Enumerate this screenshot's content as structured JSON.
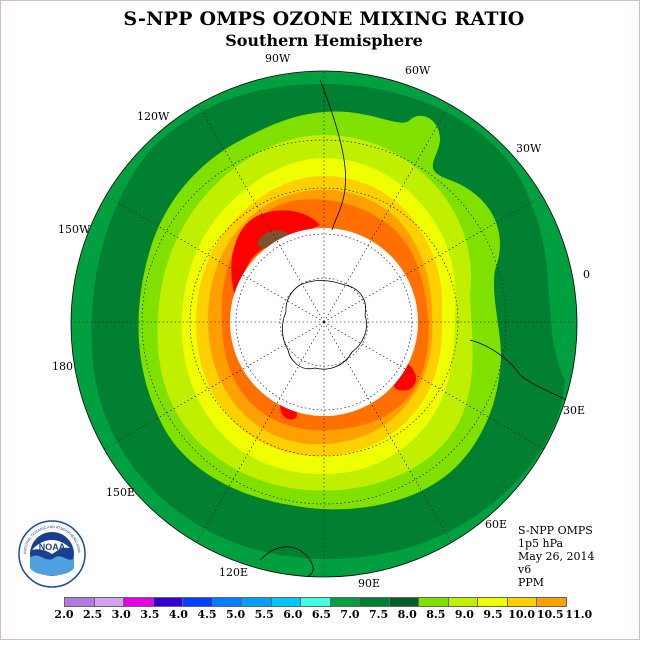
{
  "title": "S-NPP OMPS OZONE MIXING RATIO",
  "subtitle": "Southern Hemisphere",
  "longitude_labels": [
    "90W",
    "60W",
    "30W",
    "0",
    "30E",
    "60E",
    "90E",
    "120E",
    "150E",
    "180",
    "150W",
    "120W"
  ],
  "info": {
    "instrument": "S-NPP OMPS",
    "pressure": "1p5 hPa",
    "date": "May 26, 2014",
    "version": "v6",
    "units": "PPM"
  },
  "colorbar": {
    "colors": [
      "#b27ae6",
      "#d8a0f0",
      "#e600e6",
      "#3300cc",
      "#0040ff",
      "#0080ff",
      "#00a0ff",
      "#00c8ff",
      "#40ffe6",
      "#00a040",
      "#008030",
      "#006020",
      "#80e000",
      "#c0f000",
      "#f0ff00",
      "#ffd000",
      "#ffa000",
      "#ff7000",
      "#ff4000",
      "#ff0000",
      "#805030"
    ],
    "ticks": [
      "2.0",
      "2.5",
      "3.0",
      "3.5",
      "4.0",
      "4.5",
      "5.0",
      "5.5",
      "6.0",
      "6.5",
      "7.0",
      "7.5",
      "8.0",
      "8.5",
      "9.0",
      "9.5",
      "10.0",
      "10.5",
      "11.0"
    ]
  },
  "logo": {
    "text": "NOAA",
    "ring_text": "NATIONAL OCEANIC AND ATMOSPHERIC ADMINISTRATION"
  },
  "map": {
    "projection": "south-polar-stereographic",
    "no_data_region": "polar cap (white)",
    "contour_colors": {
      "6.5": "#00a040",
      "7.0": "#008030",
      "7.5": "#80e000",
      "8.0": "#c0f000",
      "8.5": "#f0ff00",
      "9.0": "#ffd000",
      "9.5": "#ffa000",
      "10.0": "#ff7000",
      "10.5": "#ff0000",
      "11.0": "#805030"
    }
  }
}
